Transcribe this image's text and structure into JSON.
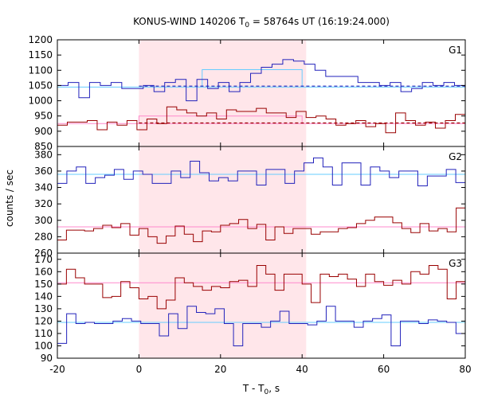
{
  "chart_data": {
    "type": "line",
    "title": "KONUS-WIND 140206 T",
    "title_sub": "0",
    "title_rest": " = 58764s UT (16:19:24.000)",
    "xlabel": "T - T",
    "xlabel_sub": "0",
    "xlabel_unit": ", s",
    "ylabel": "counts / sec",
    "xlim": [
      -20,
      80
    ],
    "x_ticks": [
      -20,
      0,
      20,
      40,
      60,
      80
    ],
    "x_tick_labels": [
      "-20",
      "0",
      "20",
      "40",
      "60",
      "80"
    ],
    "highlight_interval": [
      0,
      41
    ],
    "colors": {
      "blue": "#2222bb",
      "red": "#990000",
      "light_blue": "#66ccff",
      "pink": "#ff88cc",
      "highlight": "#ffe6ea"
    },
    "bin_width": 2.944,
    "bin_start": -20,
    "panels": [
      {
        "label": "G1",
        "ylim": [
          850,
          1200
        ],
        "y_ticks": [
          850,
          900,
          950,
          1000,
          1050,
          1100,
          1150,
          1200
        ],
        "y_tick_labels": [
          "850",
          "900",
          "950",
          "1000",
          "1050",
          "1100",
          "1150",
          "1200"
        ],
        "series": [
          {
            "color": "blue",
            "values": [
              1050,
              1060,
              1010,
              1060,
              1050,
              1060,
              1040,
              1040,
              1050,
              1030,
              1060,
              1070,
              1000,
              1070,
              1040,
              1060,
              1030,
              1060,
              1090,
              1110,
              1120,
              1135,
              1130,
              1120,
              1100,
              1080,
              1080,
              1080,
              1060,
              1060,
              1050,
              1060,
              1030,
              1040,
              1060,
              1050,
              1060,
              1050
            ]
          },
          {
            "color": "red",
            "values": [
              920,
              930,
              930,
              935,
              905,
              930,
              920,
              935,
              905,
              940,
              925,
              980,
              970,
              960,
              950,
              960,
              940,
              970,
              965,
              965,
              975,
              960,
              960,
              945,
              965,
              945,
              950,
              940,
              920,
              925,
              935,
              915,
              925,
              895,
              960,
              935,
              920,
              930,
              910,
              935,
              955
            ]
          }
        ],
        "fit_lines": [
          {
            "color": "light_blue",
            "value": 1045
          },
          {
            "color": "pink",
            "value": 925
          }
        ],
        "steps": [
          {
            "color": "light_blue",
            "x": [
              15.5,
              40
            ],
            "value": 1102
          },
          {
            "color": "pink",
            "x": [
              0,
              40
            ],
            "value": 950
          }
        ],
        "dashed_lines": [
          {
            "color": "blue",
            "x": [
              0,
              80
            ],
            "value": 1048
          },
          {
            "color": "red",
            "x": [
              0,
              80
            ],
            "value": 927
          }
        ]
      },
      {
        "label": "G2",
        "ylim": [
          260,
          390
        ],
        "y_ticks": [
          260,
          280,
          300,
          320,
          340,
          360,
          380
        ],
        "y_tick_labels": [
          "260",
          "280",
          "300",
          "320",
          "340",
          "360",
          "380"
        ],
        "series": [
          {
            "color": "blue",
            "values": [
              345,
              360,
              365,
              345,
              352,
              355,
              362,
              350,
              360,
              356,
              345,
              345,
              360,
              352,
              372,
              358,
              348,
              352,
              348,
              360,
              360,
              343,
              362,
              362,
              345,
              360,
              370,
              376,
              365,
              343,
              370,
              370,
              343,
              365,
              360,
              352,
              360,
              360,
              342,
              354,
              354,
              362,
              346
            ]
          },
          {
            "color": "red",
            "values": [
              276,
              288,
              288,
              287,
              290,
              294,
              291,
              296,
              282,
              290,
              280,
              272,
              281,
              293,
              283,
              274,
              287,
              286,
              294,
              296,
              301,
              290,
              295,
              276,
              292,
              284,
              290,
              290,
              283,
              286,
              286,
              290,
              291,
              296,
              300,
              304,
              304,
              297,
              290,
              285,
              296,
              287,
              290,
              286,
              315
            ]
          }
        ],
        "fit_lines": [
          {
            "color": "light_blue",
            "value": 356
          },
          {
            "color": "pink",
            "value": 292
          }
        ],
        "steps": [],
        "dashed_lines": []
      },
      {
        "label": "G3",
        "ylim": [
          90,
          175
        ],
        "y_ticks": [
          90,
          100,
          110,
          120,
          130,
          140,
          150,
          160,
          170
        ],
        "y_tick_labels": [
          "90",
          "100",
          "110",
          "120",
          "130",
          "140",
          "150",
          "160",
          "170"
        ],
        "series": [
          {
            "color": "red",
            "values": [
              150,
              162,
              155,
              150,
              150,
              139,
              140,
              152,
              147,
              138,
              140,
              130,
              137,
              155,
              151,
              148,
              145,
              148,
              147,
              152,
              153,
              148,
              165,
              158,
              145,
              158,
              158,
              150,
              135,
              158,
              156,
              158,
              154,
              148,
              158,
              152,
              149,
              153,
              150,
              160,
              158,
              165,
              162,
              138,
              152
            ]
          },
          {
            "color": "blue",
            "values": [
              102,
              126,
              118,
              119,
              118,
              118,
              120,
              122,
              120,
              118,
              118,
              108,
              126,
              114,
              132,
              127,
              126,
              130,
              118,
              100,
              118,
              118,
              115,
              120,
              128,
              118,
              118,
              117,
              120,
              132,
              120,
              120,
              115,
              120,
              122,
              125,
              100,
              120,
              120,
              118,
              121,
              120,
              119,
              110
            ]
          }
        ],
        "fit_lines": [
          {
            "color": "light_blue",
            "value": 119
          },
          {
            "color": "pink",
            "value": 151
          }
        ],
        "steps": [],
        "dashed_lines": []
      }
    ]
  }
}
